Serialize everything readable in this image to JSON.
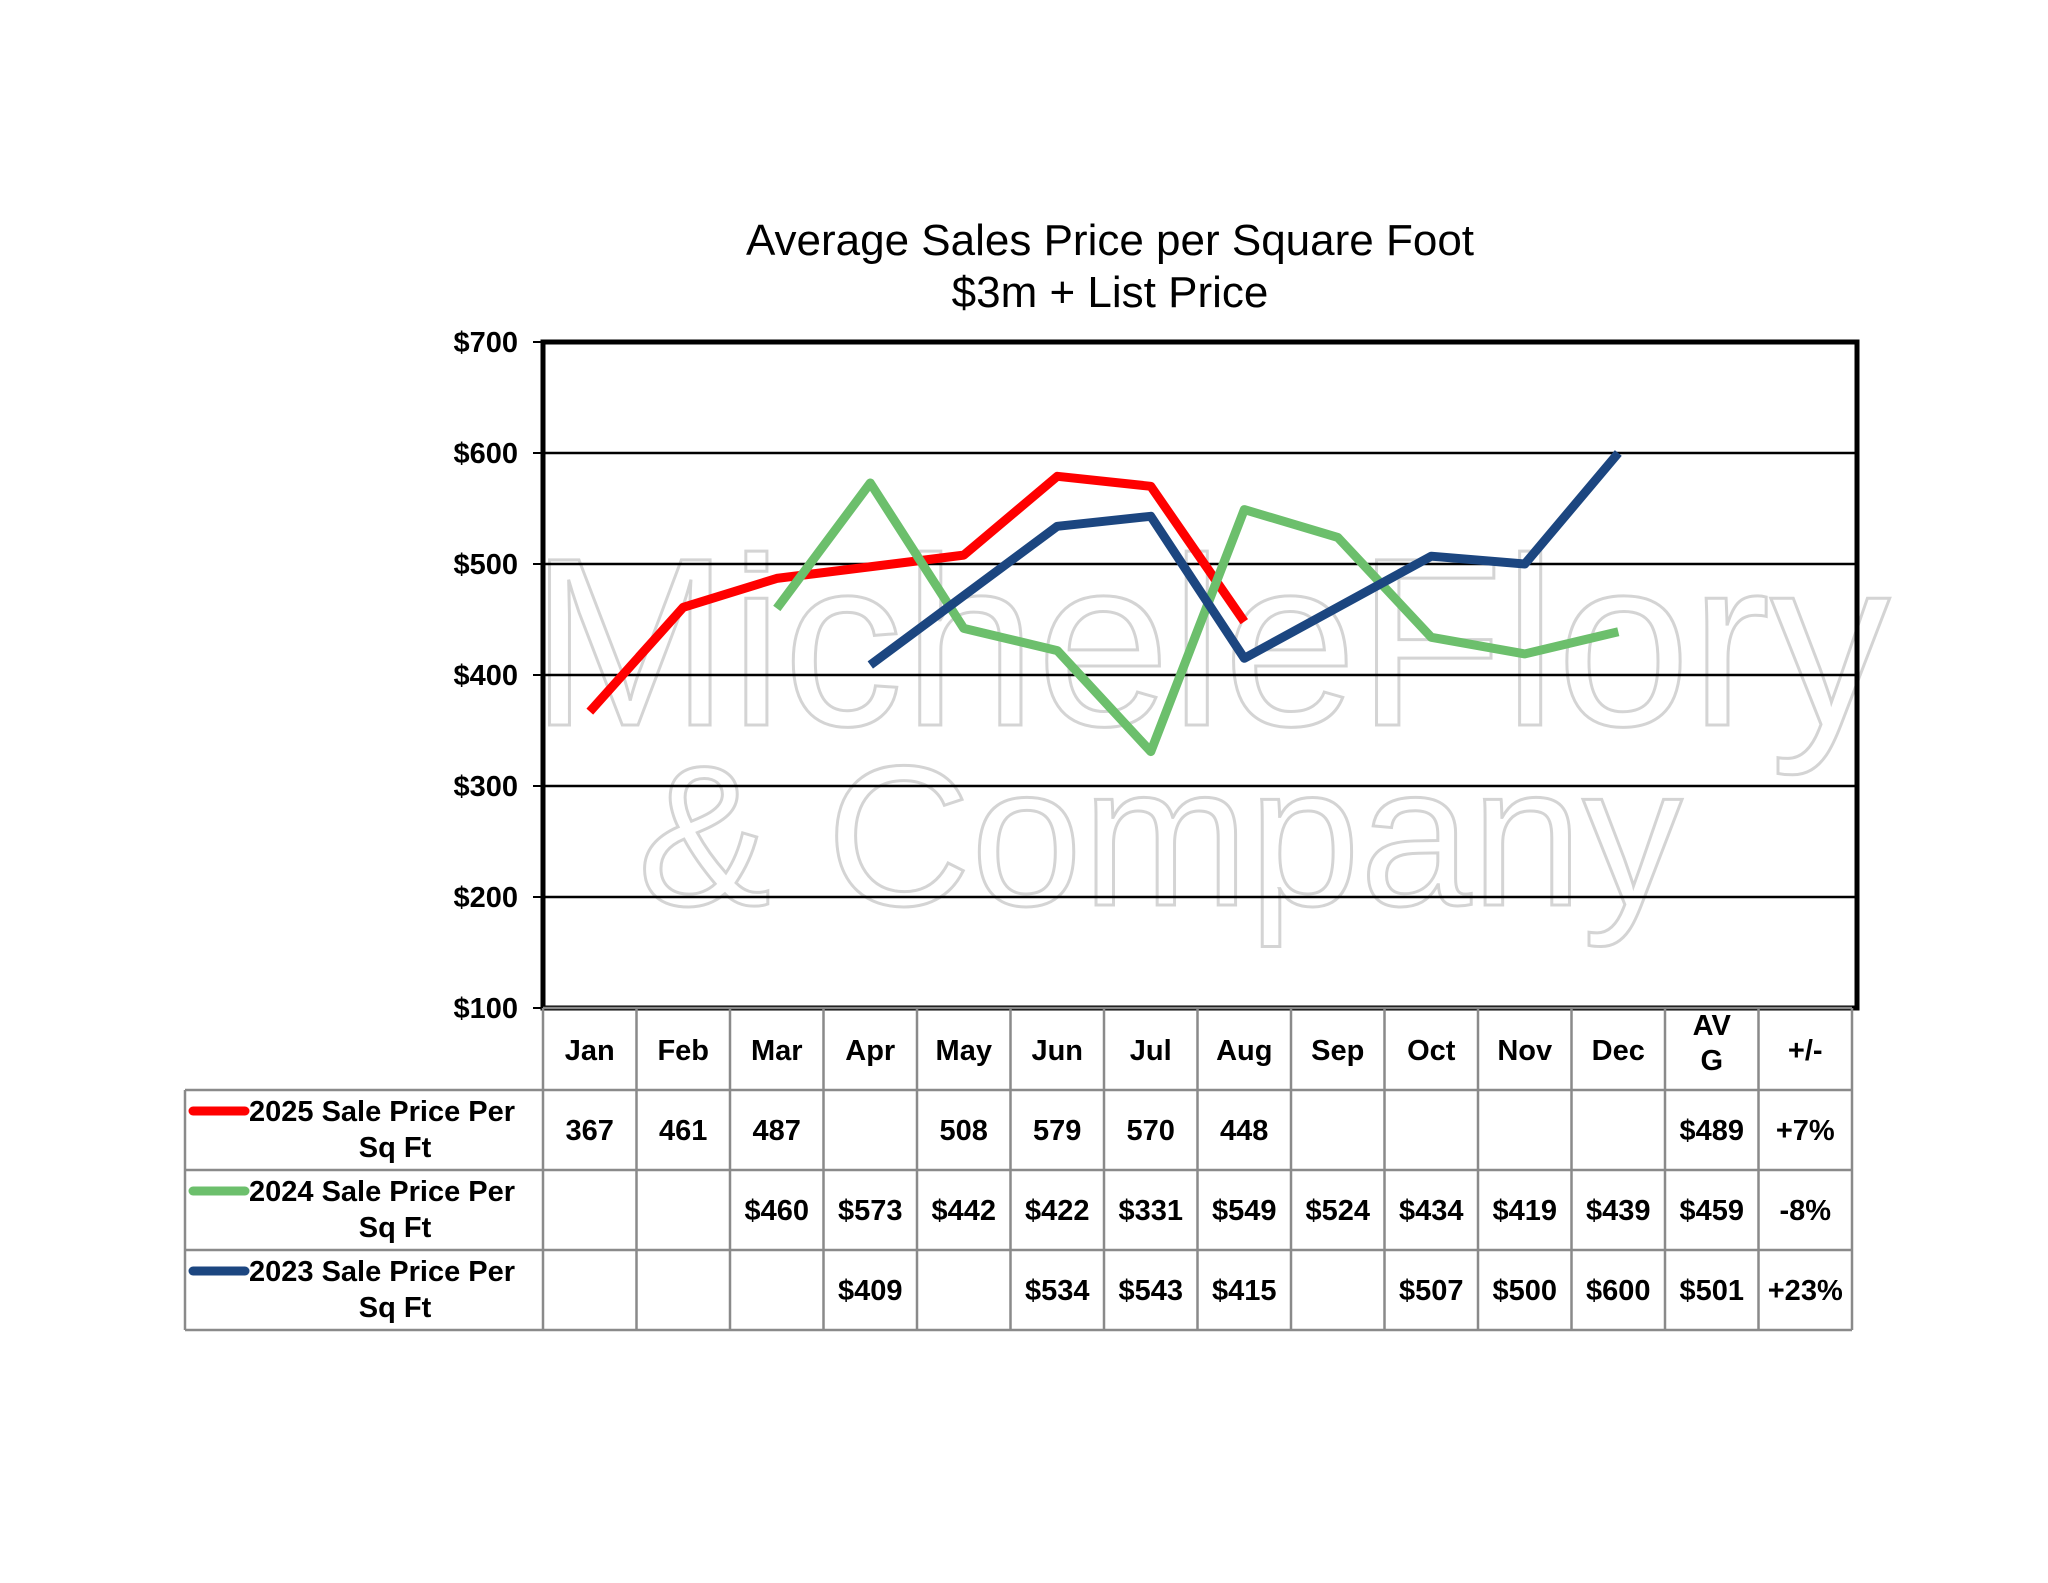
{
  "chart_data": {
    "type": "line",
    "title": "Average Sales Price per Square Foot",
    "subtitle": "$3m + List Price",
    "ylim": [
      100,
      700
    ],
    "yticks": [
      "$100",
      "$200",
      "$300",
      "$400",
      "$500",
      "$600",
      "$700"
    ],
    "grid": true,
    "categories": [
      "Jan",
      "Feb",
      "Mar",
      "Apr",
      "May",
      "Jun",
      "Jul",
      "Aug",
      "Sep",
      "Oct",
      "Nov",
      "Dec"
    ],
    "table_extra_headers": [
      "AV G",
      "+/-"
    ],
    "series": [
      {
        "name": "2025 Sale Price Per Sq Ft",
        "color": "#ff0000",
        "values": [
          367,
          461,
          487,
          null,
          508,
          579,
          570,
          448,
          null,
          null,
          null,
          null
        ],
        "labels": [
          "367",
          "461",
          "487",
          "",
          "508",
          "579",
          "570",
          "448",
          "",
          "",
          "",
          ""
        ],
        "avg": "$489",
        "change": "+7%"
      },
      {
        "name": "2024 Sale Price Per Sq Ft",
        "color": "#6cbf6c",
        "values": [
          null,
          null,
          460,
          573,
          442,
          422,
          331,
          549,
          524,
          434,
          419,
          439
        ],
        "labels": [
          "",
          "",
          "$460",
          "$573",
          "$442",
          "$422",
          "$331",
          "$549",
          "$524",
          "$434",
          "$419",
          "$439"
        ],
        "avg": "$459",
        "change": "-8%"
      },
      {
        "name": "2023 Sale Price Per Sq Ft",
        "color": "#1c4680",
        "values": [
          null,
          null,
          null,
          409,
          null,
          534,
          543,
          415,
          null,
          507,
          500,
          600
        ],
        "labels": [
          "",
          "",
          "",
          "$409",
          "",
          "$534",
          "$543",
          "$415",
          "",
          "$507",
          "$500",
          "$600"
        ],
        "avg": "$501",
        "change": "+23%"
      }
    ]
  },
  "watermark": {
    "line1": "MicheleFlory",
    "line2": "& Company"
  }
}
